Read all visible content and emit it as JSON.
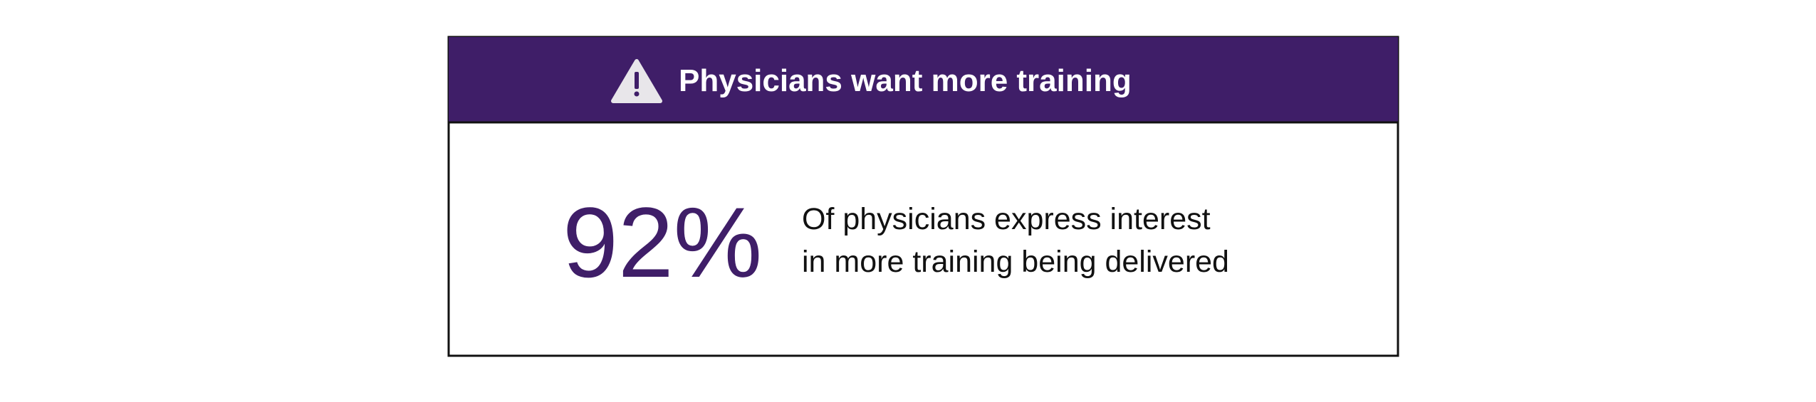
{
  "header": {
    "title": "Physicians want more training"
  },
  "stat": {
    "value": "92%"
  },
  "description": {
    "lines": [
      "Of physicians express interest",
      "in more training being delivered"
    ]
  }
}
